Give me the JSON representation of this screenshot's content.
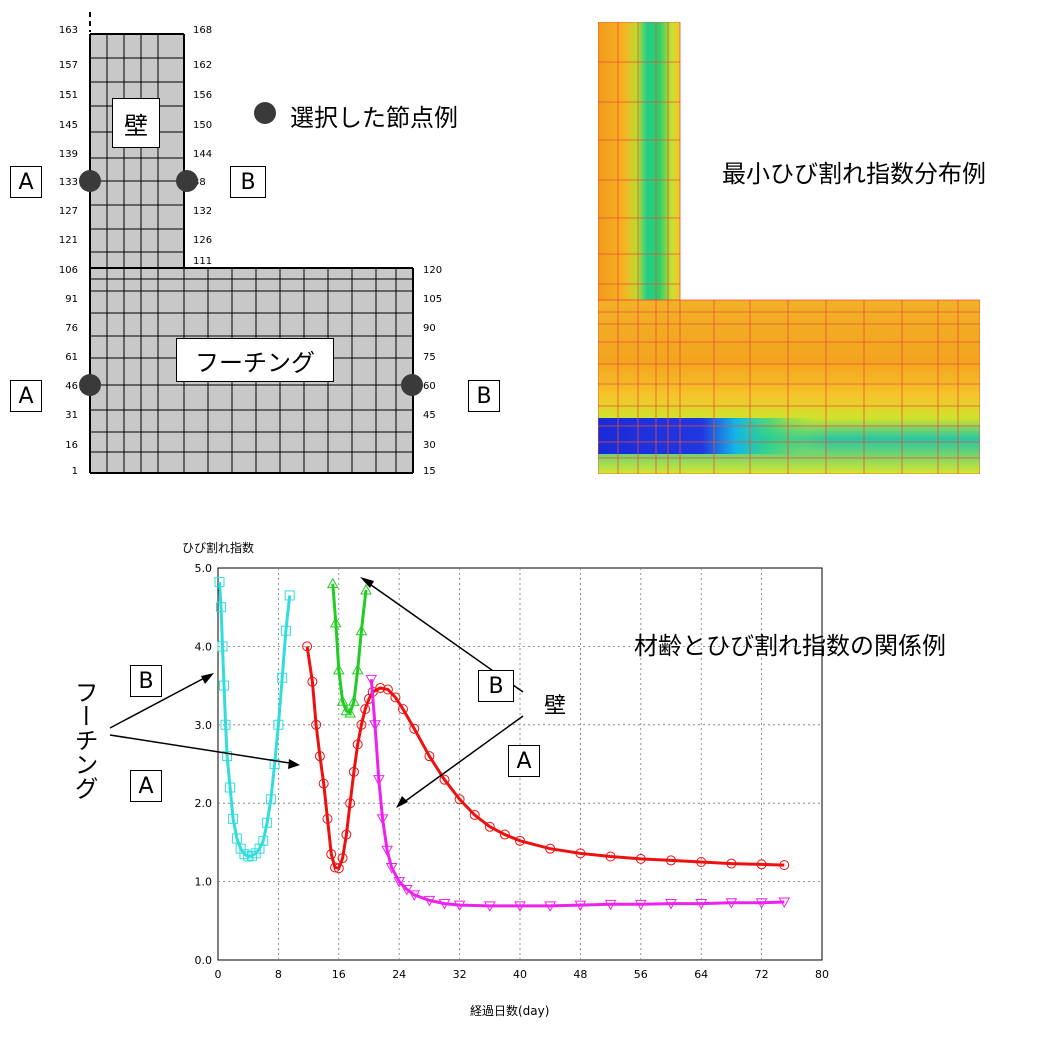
{
  "mesh": {
    "left_nodes": [
      "163",
      "157",
      "151",
      "145",
      "139",
      "133",
      "127",
      "121",
      "106",
      "91",
      "76",
      "61",
      "46",
      "31",
      "16",
      "1"
    ],
    "right_nodes_wall": [
      "168",
      "162",
      "156",
      "150",
      "144",
      "38",
      "132",
      "126",
      "111"
    ],
    "right_nodes_footing": [
      "120",
      "105",
      "90",
      "75",
      "60",
      "45",
      "30",
      "15"
    ],
    "label_wall": "壁",
    "label_footing": "フーチング",
    "label_A": "A",
    "label_B": "B",
    "legend_text": "選択した節点例"
  },
  "heatmap": {
    "title": "最小ひび割れ指数分布例"
  },
  "chart_data": {
    "type": "line",
    "title": "材齢とひび割れ指数の関係例",
    "ylabel": "ひび割れ指数",
    "xlabel": "経過日数(day)",
    "xlim": [
      0,
      80
    ],
    "ylim": [
      0,
      5
    ],
    "xticks": [
      0,
      8,
      16,
      24,
      32,
      40,
      48,
      56,
      64,
      72,
      80
    ],
    "yticks": [
      "0.0",
      "1.0",
      "2.0",
      "3.0",
      "4.0",
      "5.0"
    ],
    "grid": true,
    "series": [
      {
        "color": "#33dddd",
        "marker": "square",
        "points": [
          [
            0.2,
            4.82
          ],
          [
            0.4,
            4.5
          ],
          [
            0.6,
            4.0
          ],
          [
            0.8,
            3.5
          ],
          [
            1.0,
            3.0
          ],
          [
            1.2,
            2.6
          ],
          [
            1.6,
            2.2
          ],
          [
            2.0,
            1.8
          ],
          [
            2.5,
            1.55
          ],
          [
            3.0,
            1.42
          ],
          [
            3.5,
            1.35
          ],
          [
            4.0,
            1.32
          ],
          [
            4.5,
            1.33
          ],
          [
            5.0,
            1.36
          ],
          [
            5.5,
            1.42
          ],
          [
            6.0,
            1.52
          ],
          [
            6.5,
            1.75
          ],
          [
            7.0,
            2.05
          ],
          [
            7.5,
            2.5
          ],
          [
            8.0,
            3.0
          ],
          [
            8.5,
            3.6
          ],
          [
            9.0,
            4.2
          ],
          [
            9.5,
            4.65
          ]
        ]
      },
      {
        "color": "#ee1111",
        "marker": "circle",
        "points": [
          [
            11.8,
            4.0
          ],
          [
            12.5,
            3.55
          ],
          [
            13.0,
            3.0
          ],
          [
            13.5,
            2.6
          ],
          [
            14.0,
            2.25
          ],
          [
            14.5,
            1.8
          ],
          [
            15.0,
            1.35
          ],
          [
            15.5,
            1.18
          ],
          [
            16.0,
            1.17
          ],
          [
            16.5,
            1.3
          ],
          [
            17.0,
            1.6
          ],
          [
            17.5,
            2.0
          ],
          [
            18.0,
            2.4
          ],
          [
            18.5,
            2.75
          ],
          [
            19.0,
            3.0
          ],
          [
            19.5,
            3.2
          ],
          [
            20.0,
            3.33
          ],
          [
            20.5,
            3.42
          ],
          [
            21.5,
            3.47
          ],
          [
            22.5,
            3.45
          ],
          [
            23.5,
            3.35
          ],
          [
            24.5,
            3.2
          ],
          [
            26,
            2.95
          ],
          [
            28,
            2.6
          ],
          [
            30,
            2.3
          ],
          [
            32,
            2.05
          ],
          [
            34,
            1.85
          ],
          [
            36,
            1.7
          ],
          [
            38,
            1.6
          ],
          [
            40,
            1.52
          ],
          [
            44,
            1.42
          ],
          [
            48,
            1.36
          ],
          [
            52,
            1.32
          ],
          [
            56,
            1.29
          ],
          [
            60,
            1.27
          ],
          [
            64,
            1.25
          ],
          [
            68,
            1.23
          ],
          [
            72,
            1.22
          ],
          [
            75,
            1.21
          ]
        ]
      },
      {
        "color": "#22cc22",
        "marker": "triangle-up",
        "points": [
          [
            15.2,
            4.8
          ],
          [
            15.6,
            4.3
          ],
          [
            16.0,
            3.7
          ],
          [
            16.5,
            3.3
          ],
          [
            17.0,
            3.18
          ],
          [
            17.5,
            3.15
          ],
          [
            18.0,
            3.3
          ],
          [
            18.5,
            3.7
          ],
          [
            19.0,
            4.2
          ],
          [
            19.6,
            4.72
          ]
        ]
      },
      {
        "color": "#ee22ee",
        "marker": "triangle-down",
        "points": [
          [
            20.3,
            3.58
          ],
          [
            20.8,
            3.0
          ],
          [
            21.3,
            2.3
          ],
          [
            21.8,
            1.8
          ],
          [
            22.4,
            1.4
          ],
          [
            23.0,
            1.18
          ],
          [
            24,
            1.0
          ],
          [
            25,
            0.9
          ],
          [
            26,
            0.83
          ],
          [
            28,
            0.76
          ],
          [
            30,
            0.72
          ],
          [
            32,
            0.7
          ],
          [
            36,
            0.69
          ],
          [
            40,
            0.69
          ],
          [
            44,
            0.69
          ],
          [
            48,
            0.7
          ],
          [
            52,
            0.71
          ],
          [
            56,
            0.71
          ],
          [
            60,
            0.72
          ],
          [
            64,
            0.72
          ],
          [
            68,
            0.73
          ],
          [
            72,
            0.73
          ],
          [
            75,
            0.74
          ]
        ]
      }
    ],
    "annotations": {
      "wall": "壁",
      "footing": "フーチング",
      "A": "A",
      "B": "B"
    }
  }
}
